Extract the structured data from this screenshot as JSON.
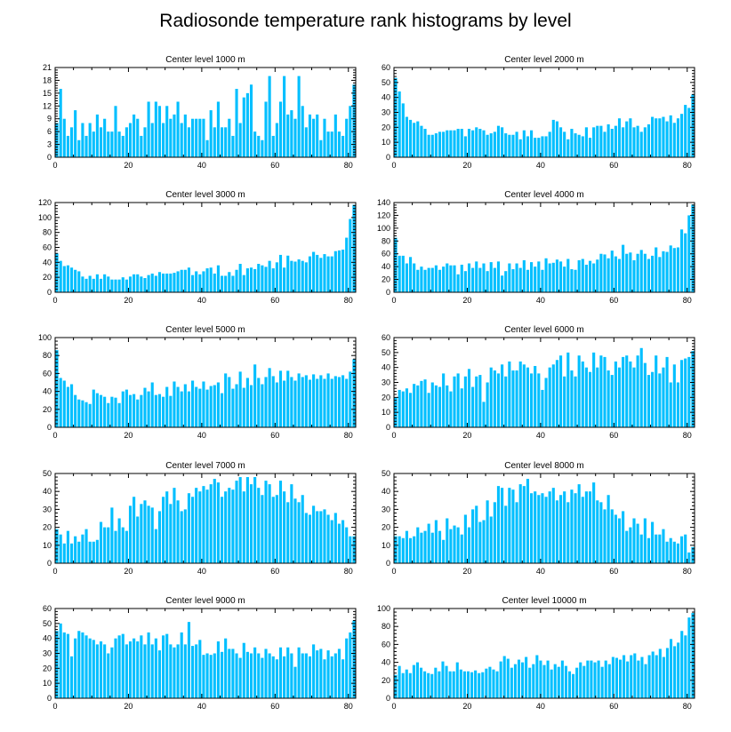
{
  "chart_data": {
    "title": "Radiosonde temperature rank histograms by level",
    "type": "bar",
    "color": "#00bfff",
    "panels": [
      {
        "title": "Center level 1000 m",
        "xlim": [
          0,
          82
        ],
        "xticks": [
          0,
          20,
          40,
          60,
          80
        ],
        "ylim": [
          0,
          21
        ],
        "yticks": [
          0,
          3,
          6,
          9,
          12,
          15,
          18,
          21
        ],
        "values": [
          8,
          16,
          9,
          5,
          7,
          11,
          4,
          8,
          5,
          8,
          6,
          10,
          7,
          9,
          6,
          6,
          12,
          6,
          5,
          7,
          8,
          10,
          9,
          5,
          7,
          13,
          8,
          13,
          12,
          8,
          12,
          9,
          10,
          13,
          8,
          10,
          7,
          9,
          9,
          9,
          9,
          4,
          11,
          7,
          13,
          7,
          7,
          9,
          5,
          16,
          8,
          14,
          15,
          17,
          6,
          5,
          4,
          13,
          19,
          5,
          8,
          13,
          19,
          10,
          11,
          9,
          19,
          12,
          7,
          10,
          9,
          10,
          4,
          9,
          6,
          6,
          10,
          6,
          5,
          9,
          12,
          17
        ]
      },
      {
        "title": "Center level 2000 m",
        "xlim": [
          0,
          82
        ],
        "xticks": [
          0,
          20,
          40,
          60,
          80
        ],
        "ylim": [
          0,
          60
        ],
        "yticks": [
          0,
          10,
          20,
          30,
          40,
          50,
          60
        ],
        "values": [
          53,
          44,
          36,
          27,
          25,
          23,
          24,
          21,
          19,
          15,
          15,
          16,
          17,
          17,
          18,
          18,
          18,
          19,
          19,
          14,
          19,
          18,
          20,
          19,
          18,
          15,
          16,
          17,
          21,
          20,
          16,
          15,
          15,
          17,
          12,
          18,
          14,
          18,
          13,
          13,
          14,
          14,
          17,
          25,
          24,
          20,
          17,
          12,
          19,
          16,
          15,
          14,
          20,
          13,
          20,
          21,
          21,
          17,
          22,
          19,
          21,
          26,
          20,
          24,
          26,
          20,
          21,
          17,
          20,
          22,
          27,
          26,
          26,
          27,
          24,
          28,
          23,
          26,
          29,
          35,
          33,
          42
        ]
      },
      {
        "title": "Center level 3000 m",
        "xlim": [
          0,
          82
        ],
        "xticks": [
          0,
          20,
          40,
          60,
          80
        ],
        "ylim": [
          0,
          120
        ],
        "yticks": [
          0,
          20,
          40,
          60,
          80,
          100,
          120
        ],
        "values": [
          52,
          42,
          35,
          36,
          33,
          30,
          28,
          21,
          18,
          22,
          18,
          24,
          18,
          24,
          21,
          17,
          17,
          17,
          20,
          17,
          21,
          24,
          24,
          21,
          19,
          23,
          25,
          22,
          27,
          25,
          25,
          25,
          26,
          28,
          30,
          30,
          33,
          23,
          28,
          24,
          28,
          32,
          33,
          25,
          36,
          22,
          22,
          27,
          22,
          30,
          38,
          23,
          32,
          33,
          31,
          38,
          36,
          34,
          42,
          32,
          40,
          50,
          33,
          49,
          42,
          41,
          44,
          42,
          40,
          48,
          54,
          50,
          46,
          51,
          48,
          48,
          55,
          56,
          57,
          73,
          98,
          117
        ]
      },
      {
        "title": "Center level 4000 m",
        "xlim": [
          0,
          82
        ],
        "xticks": [
          0,
          20,
          40,
          60,
          80
        ],
        "ylim": [
          0,
          140
        ],
        "yticks": [
          0,
          20,
          40,
          60,
          80,
          100,
          120,
          140
        ],
        "values": [
          85,
          57,
          57,
          45,
          55,
          45,
          35,
          40,
          35,
          38,
          38,
          42,
          35,
          40,
          45,
          42,
          42,
          28,
          43,
          33,
          45,
          38,
          48,
          38,
          45,
          33,
          47,
          38,
          48,
          26,
          33,
          45,
          36,
          45,
          38,
          50,
          35,
          47,
          40,
          48,
          35,
          53,
          45,
          46,
          51,
          48,
          40,
          52,
          36,
          35,
          50,
          52,
          43,
          49,
          45,
          51,
          60,
          59,
          53,
          65,
          56,
          52,
          74,
          60,
          62,
          50,
          60,
          66,
          60,
          52,
          57,
          70,
          55,
          64,
          63,
          73,
          69,
          70,
          98,
          92,
          120,
          137
        ]
      },
      {
        "title": "Center level 5000 m",
        "xlim": [
          0,
          82
        ],
        "xticks": [
          0,
          20,
          40,
          60,
          80
        ],
        "ylim": [
          0,
          100
        ],
        "yticks": [
          0,
          20,
          40,
          60,
          80,
          100
        ],
        "values": [
          86,
          55,
          52,
          45,
          48,
          36,
          31,
          30,
          28,
          26,
          42,
          38,
          36,
          34,
          27,
          34,
          33,
          27,
          40,
          42,
          36,
          37,
          31,
          36,
          44,
          40,
          50,
          36,
          37,
          34,
          45,
          35,
          51,
          45,
          40,
          48,
          40,
          52,
          45,
          43,
          51,
          42,
          46,
          47,
          50,
          38,
          60,
          56,
          43,
          48,
          62,
          44,
          55,
          47,
          70,
          55,
          48,
          56,
          66,
          57,
          50,
          63,
          52,
          63,
          56,
          52,
          60,
          56,
          58,
          53,
          59,
          54,
          58,
          54,
          60,
          54,
          57,
          56,
          58,
          54,
          62,
          76
        ]
      },
      {
        "title": "Center level 6000 m",
        "xlim": [
          0,
          82
        ],
        "xticks": [
          0,
          20,
          40,
          60,
          80
        ],
        "ylim": [
          0,
          60
        ],
        "yticks": [
          0,
          10,
          20,
          30,
          40,
          50,
          60
        ],
        "values": [
          20,
          25,
          24,
          26,
          23,
          29,
          28,
          31,
          32,
          23,
          30,
          28,
          27,
          36,
          28,
          24,
          34,
          36,
          26,
          34,
          39,
          27,
          34,
          35,
          17,
          30,
          40,
          38,
          36,
          42,
          34,
          44,
          38,
          38,
          44,
          42,
          40,
          36,
          41,
          36,
          25,
          33,
          40,
          42,
          45,
          48,
          34,
          50,
          38,
          34,
          48,
          44,
          40,
          37,
          50,
          40,
          48,
          47,
          38,
          35,
          44,
          40,
          47,
          48,
          44,
          40,
          48,
          53,
          43,
          35,
          37,
          48,
          36,
          40,
          47,
          30,
          42,
          30,
          45,
          46,
          47,
          51
        ]
      },
      {
        "title": "Center level 7000 m",
        "xlim": [
          0,
          82
        ],
        "xticks": [
          0,
          20,
          40,
          60,
          80
        ],
        "ylim": [
          0,
          50
        ],
        "yticks": [
          0,
          10,
          20,
          30,
          40,
          50
        ],
        "values": [
          19,
          16,
          11,
          18,
          11,
          15,
          12,
          16,
          19,
          12,
          12,
          13,
          23,
          20,
          20,
          31,
          18,
          25,
          20,
          18,
          32,
          37,
          26,
          33,
          35,
          32,
          31,
          19,
          29,
          37,
          40,
          33,
          42,
          35,
          29,
          30,
          39,
          37,
          42,
          40,
          43,
          41,
          44,
          47,
          45,
          37,
          40,
          42,
          41,
          46,
          48,
          40,
          48,
          44,
          48,
          42,
          38,
          46,
          44,
          37,
          38,
          46,
          40,
          34,
          44,
          36,
          34,
          38,
          28,
          27,
          32,
          29,
          29,
          30,
          27,
          24,
          28,
          22,
          24,
          20,
          15,
          15
        ]
      },
      {
        "title": "Center level 8000 m",
        "xlim": [
          0,
          82
        ],
        "xticks": [
          0,
          20,
          40,
          60,
          80
        ],
        "ylim": [
          0,
          50
        ],
        "yticks": [
          0,
          10,
          20,
          30,
          40,
          50
        ],
        "values": [
          15,
          15,
          14,
          18,
          14,
          15,
          20,
          17,
          18,
          22,
          17,
          24,
          18,
          13,
          25,
          19,
          21,
          20,
          16,
          27,
          20,
          30,
          32,
          23,
          24,
          35,
          26,
          34,
          43,
          42,
          32,
          42,
          41,
          34,
          44,
          43,
          47,
          39,
          40,
          38,
          39,
          37,
          40,
          42,
          35,
          38,
          40,
          34,
          41,
          39,
          44,
          37,
          40,
          40,
          45,
          35,
          34,
          30,
          38,
          30,
          27,
          25,
          29,
          18,
          20,
          25,
          22,
          16,
          25,
          14,
          23,
          16,
          16,
          19,
          12,
          14,
          12,
          11,
          15,
          16,
          6,
          9
        ]
      },
      {
        "title": "Center level 9000 m",
        "xlim": [
          0,
          82
        ],
        "xticks": [
          0,
          20,
          40,
          60,
          80
        ],
        "ylim": [
          0,
          60
        ],
        "yticks": [
          0,
          10,
          20,
          30,
          40,
          50,
          60
        ],
        "values": [
          45,
          50,
          44,
          43,
          28,
          40,
          45,
          44,
          42,
          40,
          39,
          36,
          38,
          36,
          30,
          34,
          40,
          42,
          43,
          36,
          38,
          40,
          38,
          42,
          36,
          44,
          36,
          40,
          32,
          42,
          43,
          36,
          34,
          36,
          44,
          36,
          51,
          35,
          36,
          39,
          29,
          30,
          29,
          30,
          38,
          31,
          40,
          33,
          33,
          30,
          27,
          37,
          31,
          30,
          34,
          30,
          27,
          33,
          30,
          28,
          26,
          34,
          28,
          34,
          30,
          21,
          34,
          30,
          30,
          28,
          36,
          32,
          33,
          26,
          32,
          28,
          30,
          33,
          26,
          40,
          44,
          52
        ]
      },
      {
        "title": "Center level 10000 m",
        "xlim": [
          0,
          82
        ],
        "xticks": [
          0,
          20,
          40,
          60,
          80
        ],
        "ylim": [
          0,
          100
        ],
        "yticks": [
          0,
          20,
          40,
          60,
          80,
          100
        ],
        "values": [
          26,
          36,
          28,
          32,
          28,
          37,
          40,
          34,
          30,
          28,
          27,
          34,
          30,
          41,
          36,
          30,
          30,
          40,
          32,
          30,
          30,
          29,
          31,
          28,
          29,
          33,
          35,
          32,
          30,
          41,
          47,
          44,
          34,
          38,
          43,
          40,
          46,
          34,
          38,
          48,
          42,
          37,
          42,
          32,
          38,
          35,
          42,
          36,
          30,
          27,
          34,
          40,
          36,
          42,
          42,
          40,
          42,
          35,
          42,
          38,
          46,
          45,
          43,
          48,
          41,
          48,
          50,
          42,
          46,
          38,
          48,
          52,
          48,
          55,
          46,
          56,
          66,
          58,
          62,
          75,
          70,
          90,
          95
        ]
      }
    ]
  }
}
